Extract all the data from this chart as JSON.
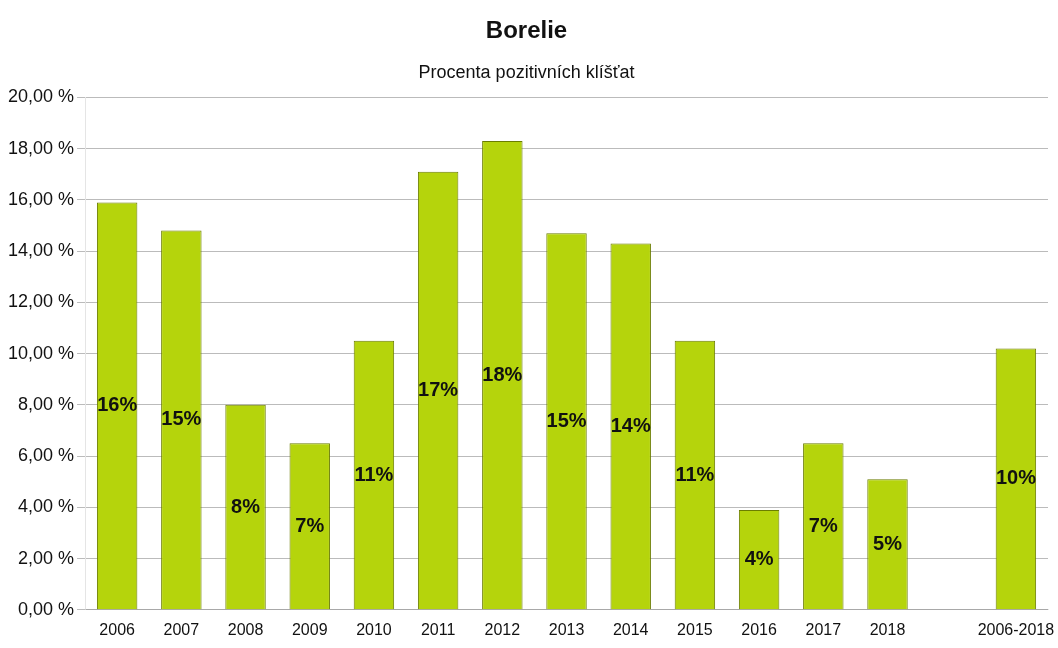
{
  "chart_data": {
    "type": "bar",
    "title": "Borelie",
    "subtitle": "Procenta pozitivních klíšťat",
    "categories": [
      "2006",
      "2007",
      "2008",
      "2009",
      "2010",
      "2011",
      "2012",
      "2013",
      "2014",
      "2015",
      "2016",
      "2017",
      "2018",
      null,
      "2006-2018"
    ],
    "values": [
      15.9,
      14.8,
      8.0,
      6.5,
      10.5,
      17.1,
      18.3,
      14.7,
      14.3,
      10.5,
      3.9,
      6.5,
      5.1,
      null,
      10.2
    ],
    "value_labels": [
      "16%",
      "15%",
      "8%",
      "7%",
      "11%",
      "17%",
      "18%",
      "15%",
      "14%",
      "11%",
      "4%",
      "7%",
      "5%",
      null,
      "10%"
    ],
    "color": "#b5d40c",
    "ylim": [
      0,
      20
    ],
    "yticks": [
      {
        "value": 0,
        "label": "0,00 %"
      },
      {
        "value": 2,
        "label": "2,00 %"
      },
      {
        "value": 4,
        "label": "4,00 %"
      },
      {
        "value": 6,
        "label": "6,00 %"
      },
      {
        "value": 8,
        "label": "8,00 %"
      },
      {
        "value": 10,
        "label": "10,00 %"
      },
      {
        "value": 12,
        "label": "12,00 %"
      },
      {
        "value": 14,
        "label": "14,00 %"
      },
      {
        "value": 16,
        "label": "16,00 %"
      },
      {
        "value": 18,
        "label": "18,00 %"
      },
      {
        "value": 20,
        "label": "20,00 %"
      }
    ],
    "grid": "y"
  }
}
